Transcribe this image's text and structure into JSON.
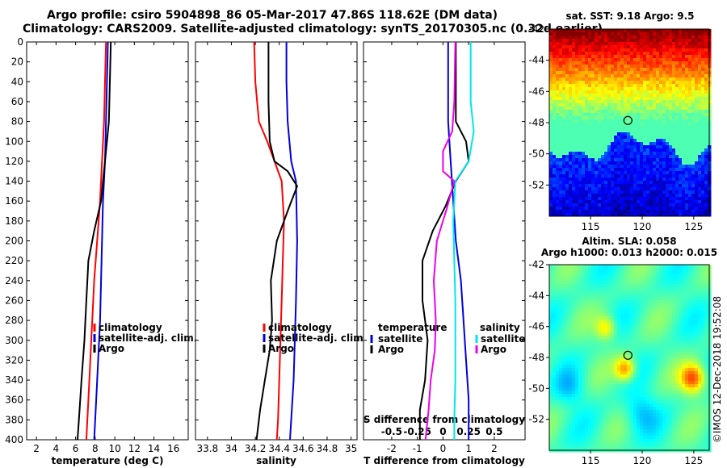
{
  "titles": {
    "line1": "Argo profile: csiro 5904898_86 05-Mar-2017 47.86S 118.62E (DM data)",
    "line2": "Climatology: CARS2009. Satellite-adjusted climatology: synTS_20170305.nc (0.32d earlier)"
  },
  "colors": {
    "climatology": "#ff0000",
    "satellite": "#0000dd",
    "argo": "#000000",
    "argo_s": "#ee00ee",
    "sat_s": "#00e5ee"
  },
  "chart_data": [
    {
      "id": "temperature",
      "type": "line",
      "xlabel": "temperature (deg C)",
      "ylabel": "",
      "xlim": [
        1,
        17.5
      ],
      "ylim": [
        400,
        0
      ],
      "x_ticks": [
        2,
        4,
        6,
        8,
        10,
        12,
        14,
        16
      ],
      "y_ticks": [
        0,
        20,
        40,
        60,
        80,
        100,
        120,
        140,
        160,
        180,
        200,
        220,
        240,
        260,
        280,
        300,
        320,
        340,
        360,
        380,
        400
      ],
      "legend": [
        "climatology",
        "satellite-adj. clim.",
        "Argo"
      ],
      "series": [
        {
          "name": "climatology",
          "color": "#ff0000",
          "points": [
            [
              9.1,
              0
            ],
            [
              9.0,
              40
            ],
            [
              8.9,
              80
            ],
            [
              8.7,
              120
            ],
            [
              8.5,
              160
            ],
            [
              8.2,
              200
            ],
            [
              7.9,
              240
            ],
            [
              7.7,
              280
            ],
            [
              7.5,
              320
            ],
            [
              7.3,
              360
            ],
            [
              7.1,
              400
            ]
          ]
        },
        {
          "name": "satellite-adj. clim.",
          "color": "#0000dd",
          "points": [
            [
              9.3,
              0
            ],
            [
              9.2,
              40
            ],
            [
              9.1,
              80
            ],
            [
              9.0,
              120
            ],
            [
              8.8,
              160
            ],
            [
              8.7,
              200
            ],
            [
              8.6,
              240
            ],
            [
              8.5,
              280
            ],
            [
              8.3,
              320
            ],
            [
              8.1,
              360
            ],
            [
              7.9,
              400
            ]
          ]
        },
        {
          "name": "Argo",
          "color": "#000000",
          "points": [
            [
              9.6,
              0
            ],
            [
              9.5,
              40
            ],
            [
              9.4,
              80
            ],
            [
              9.0,
              120
            ],
            [
              8.6,
              160
            ],
            [
              7.9,
              190
            ],
            [
              7.3,
              220
            ],
            [
              7.1,
              260
            ],
            [
              6.9,
              300
            ],
            [
              6.6,
              340
            ],
            [
              6.4,
              370
            ],
            [
              6.2,
              400
            ]
          ]
        }
      ]
    },
    {
      "id": "salinity",
      "type": "line",
      "xlabel": "salinity",
      "ylabel": "",
      "xlim": [
        33.7,
        35.05
      ],
      "ylim": [
        400,
        0
      ],
      "x_ticks": [
        33.8,
        34,
        34.2,
        34.4,
        34.6,
        34.8,
        35
      ],
      "legend": [
        "climatology",
        "satellite-adj. clim.",
        "Argo"
      ],
      "series": [
        {
          "name": "climatology",
          "color": "#ff0000",
          "points": [
            [
              34.19,
              0
            ],
            [
              34.2,
              40
            ],
            [
              34.23,
              80
            ],
            [
              34.3,
              100
            ],
            [
              34.36,
              120
            ],
            [
              34.42,
              140
            ],
            [
              34.44,
              180
            ],
            [
              34.43,
              220
            ],
            [
              34.42,
              260
            ],
            [
              34.41,
              300
            ],
            [
              34.4,
              340
            ],
            [
              34.39,
              380
            ],
            [
              34.38,
              400
            ]
          ]
        },
        {
          "name": "satellite-adj. clim.",
          "color": "#0000dd",
          "points": [
            [
              34.46,
              0
            ],
            [
              34.46,
              40
            ],
            [
              34.47,
              80
            ],
            [
              34.5,
              120
            ],
            [
              34.54,
              140
            ],
            [
              34.55,
              200
            ],
            [
              34.54,
              260
            ],
            [
              34.53,
              300
            ],
            [
              34.52,
              340
            ],
            [
              34.5,
              380
            ],
            [
              34.49,
              400
            ]
          ]
        },
        {
          "name": "Argo",
          "color": "#000000",
          "points": [
            [
              34.31,
              0
            ],
            [
              34.31,
              60
            ],
            [
              34.32,
              100
            ],
            [
              34.36,
              120
            ],
            [
              34.47,
              130
            ],
            [
              34.55,
              145
            ],
            [
              34.47,
              170
            ],
            [
              34.38,
              200
            ],
            [
              34.33,
              240
            ],
            [
              34.34,
              280
            ],
            [
              34.32,
              310
            ],
            [
              34.28,
              340
            ],
            [
              34.24,
              370
            ],
            [
              34.21,
              400
            ]
          ]
        }
      ]
    },
    {
      "id": "differences",
      "type": "line",
      "xlabel": "T difference from climatology",
      "x2label": "S difference from climatology",
      "xlim": [
        -3.1,
        3.2
      ],
      "x2lim": [
        -0.775,
        0.8
      ],
      "ylim": [
        400,
        0
      ],
      "x_ticks": [
        -2,
        -1,
        0,
        1,
        2
      ],
      "x2_ticks": [
        -0.5,
        -0.25,
        0,
        0.25,
        0.5
      ],
      "legend_temperature": {
        "header": "temperature",
        "items": [
          "satellite",
          "Argo"
        ]
      },
      "legend_salinity": {
        "header": "salinity",
        "items": [
          "satellite",
          "Argo"
        ]
      },
      "series": [
        {
          "name": "temperature satellite",
          "color": "#0000dd",
          "axis": "T",
          "points": [
            [
              0.2,
              0
            ],
            [
              0.2,
              40
            ],
            [
              0.2,
              80
            ],
            [
              0.3,
              120
            ],
            [
              0.4,
              160
            ],
            [
              0.5,
              200
            ],
            [
              0.7,
              240
            ],
            [
              0.8,
              280
            ],
            [
              0.9,
              320
            ],
            [
              1.0,
              360
            ],
            [
              1.0,
              400
            ]
          ]
        },
        {
          "name": "temperature Argo",
          "color": "#000000",
          "axis": "T",
          "points": [
            [
              0.5,
              0
            ],
            [
              0.5,
              40
            ],
            [
              0.5,
              80
            ],
            [
              0.9,
              100
            ],
            [
              1.0,
              120
            ],
            [
              0.5,
              140
            ],
            [
              0.1,
              165
            ],
            [
              -0.4,
              190
            ],
            [
              -0.8,
              220
            ],
            [
              -0.8,
              260
            ],
            [
              -0.6,
              300
            ],
            [
              -0.7,
              340
            ],
            [
              -0.9,
              370
            ],
            [
              -0.9,
              400
            ]
          ]
        },
        {
          "name": "salinity satellite",
          "color": "#00e5ee",
          "axis": "S",
          "points": [
            [
              0.27,
              0
            ],
            [
              0.27,
              60
            ],
            [
              0.3,
              90
            ],
            [
              0.25,
              120
            ],
            [
              0.12,
              140
            ],
            [
              0.1,
              180
            ],
            [
              0.11,
              220
            ],
            [
              0.12,
              260
            ],
            [
              0.12,
              300
            ],
            [
              0.12,
              340
            ],
            [
              0.11,
              380
            ],
            [
              0.11,
              400
            ]
          ]
        },
        {
          "name": "salinity Argo",
          "color": "#ee00ee",
          "axis": "S",
          "points": [
            [
              0.12,
              0
            ],
            [
              0.11,
              60
            ],
            [
              0.09,
              90
            ],
            [
              0.0,
              110
            ],
            [
              0.0,
              130
            ],
            [
              0.11,
              140
            ],
            [
              0.03,
              170
            ],
            [
              -0.06,
              200
            ],
            [
              -0.09,
              240
            ],
            [
              -0.07,
              280
            ],
            [
              -0.08,
              310
            ],
            [
              -0.12,
              340
            ],
            [
              -0.14,
              370
            ],
            [
              -0.17,
              400
            ]
          ]
        }
      ]
    }
  ],
  "maps": {
    "sst": {
      "title": "sat. SST: 9.18 Argo: 9.5",
      "x_ticks": [
        115,
        120,
        125
      ],
      "y_ticks": [
        -42,
        -44,
        -46,
        -48,
        -50,
        -52
      ],
      "xlim": [
        111,
        126.5
      ],
      "ylim": [
        -42,
        -54
      ]
    },
    "sla": {
      "title1": "Altim. SLA: 0.058",
      "title2": "Argo h1000: 0.013 h2000: 0.015",
      "x_ticks": [
        115,
        120,
        125
      ],
      "y_ticks": [
        -42,
        -44,
        -46,
        -48,
        -50,
        -52
      ],
      "xlim": [
        111,
        126.5
      ],
      "ylim": [
        -42,
        -54
      ]
    },
    "argo_position": {
      "lon": 118.62,
      "lat": -47.86
    },
    "credit": "©IMOS 12-Dec-2018 19:52:08"
  }
}
